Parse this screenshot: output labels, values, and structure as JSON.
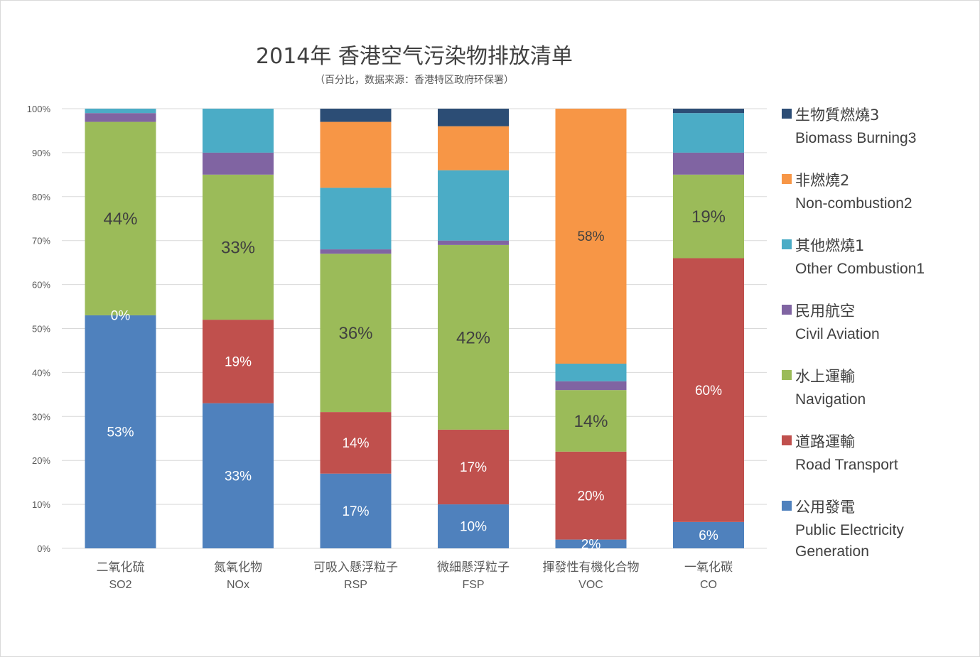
{
  "colors": {
    "public_electricity": "#4f81bd",
    "road_transport": "#c0504d",
    "navigation": "#9bbb59",
    "civil_aviation": "#8064a2",
    "other_combustion": "#4bacc6",
    "non_combustion": "#f79646",
    "biomass": "#2c4d75"
  },
  "chart_data": {
    "type": "bar",
    "stacked": true,
    "title": "2014年 香港空气污染物排放清单",
    "subtitle": "（百分比，数据来源：香港特区政府环保署）",
    "categories": [
      {
        "zh": "二氧化硫",
        "en": "SO2"
      },
      {
        "zh": "氮氧化物",
        "en": "NOx"
      },
      {
        "zh": "可吸入懸浮粒子",
        "en": "RSP"
      },
      {
        "zh": "微細懸浮粒子",
        "en": "FSP"
      },
      {
        "zh": "揮發性有機化合物",
        "en": "VOC"
      },
      {
        "zh": "一氧化碳",
        "en": "CO"
      }
    ],
    "ylim": [
      0,
      100
    ],
    "yticks": [
      "0%",
      "10%",
      "20%",
      "30%",
      "40%",
      "50%",
      "60%",
      "70%",
      "80%",
      "90%",
      "100%"
    ],
    "grid": true,
    "legend_position": "right",
    "series": [
      {
        "name": "公用發電",
        "name_en": "Public Electricity Generation",
        "color_key": "public_electricity",
        "values": [
          53,
          33,
          17,
          10,
          2,
          6
        ],
        "labels": [
          "53%",
          "33%",
          "17%",
          "10%",
          "2%",
          "6%"
        ]
      },
      {
        "name": "道路運輸",
        "name_en": "Road Transport",
        "color_key": "road_transport",
        "values": [
          0,
          19,
          14,
          17,
          20,
          60
        ],
        "labels": [
          "0%",
          "19%",
          "14%",
          "17%",
          "20%",
          "60%"
        ]
      },
      {
        "name": "水上運輸",
        "name_en": "Navigation",
        "color_key": "navigation",
        "values": [
          44,
          33,
          36,
          42,
          14,
          19
        ],
        "labels": [
          "44%",
          "33%",
          "36%",
          "42%",
          "14%",
          "19%"
        ]
      },
      {
        "name": "民用航空",
        "name_en": "Civil Aviation",
        "color_key": "civil_aviation",
        "values": [
          2,
          5,
          1,
          1,
          2,
          5
        ],
        "labels": [
          null,
          null,
          null,
          null,
          null,
          null
        ]
      },
      {
        "name": "其他燃燒1",
        "name_en": "Other Combustion1",
        "color_key": "other_combustion",
        "values": [
          1,
          10,
          14,
          16,
          4,
          9
        ],
        "labels": [
          null,
          null,
          null,
          null,
          null,
          null
        ]
      },
      {
        "name": "非燃燒2",
        "name_en": "Non-combustion2",
        "color_key": "non_combustion",
        "values": [
          0,
          0,
          15,
          10,
          58,
          0
        ],
        "labels": [
          null,
          null,
          null,
          null,
          "58%",
          null
        ]
      },
      {
        "name": "生物質燃燒3",
        "name_en": "Biomass Burning3",
        "color_key": "biomass",
        "values": [
          0,
          0,
          3,
          4,
          0,
          1
        ],
        "labels": [
          null,
          null,
          null,
          null,
          null,
          null
        ]
      }
    ]
  }
}
